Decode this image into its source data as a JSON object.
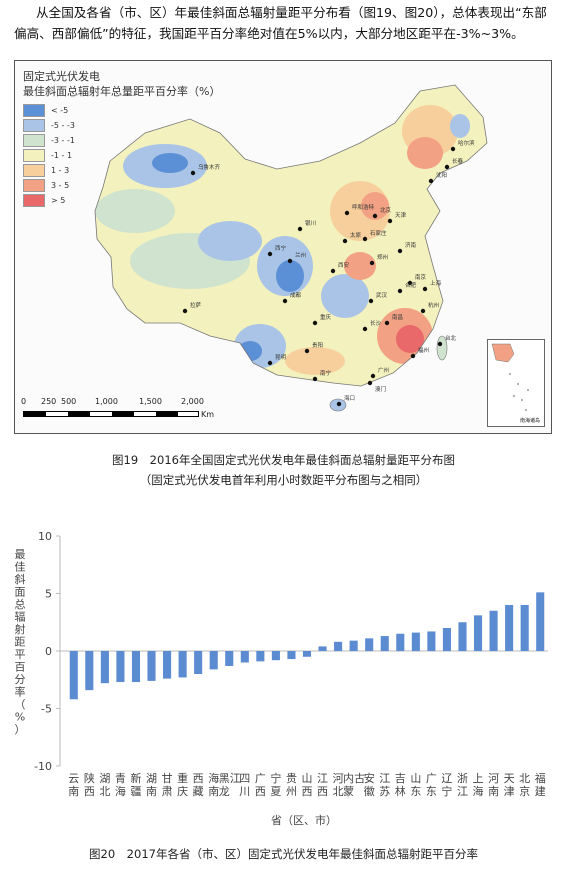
{
  "intro": {
    "text": "从全国及各省（市、区）年最佳斜面总辐射量距平分布看（图19、图20），总体表现出“东部偏高、西部偏低”的特征，我国距平百分率绝对值在5%以内，大部分地区距平在-3%~3%。"
  },
  "map": {
    "legend_title_1": "固定式光伏发电",
    "legend_title_2": "最佳斜面总辐射年总量距平百分率（%）",
    "legend_items": [
      {
        "label": "< -5",
        "color": "#5b8fd6"
      },
      {
        "label": "-5 - -3",
        "color": "#a9c4e6"
      },
      {
        "label": "-3 - -1",
        "color": "#cfe3cf"
      },
      {
        "label": "-1 - 1",
        "color": "#f3f1bd"
      },
      {
        "label": "1 - 3",
        "color": "#f7cf9c"
      },
      {
        "label": "3 - 5",
        "color": "#f3a184"
      },
      {
        "label": "> 5",
        "color": "#e9686a"
      }
    ],
    "scale_ticks": [
      "0",
      "250",
      "500",
      "1,000",
      "1,500",
      "2,000"
    ],
    "scale_unit": "Km",
    "inset_label": "南海诸岛",
    "cities": [
      "乌鲁木齐",
      "哈尔滨",
      "长春",
      "沈阳",
      "呼和浩特",
      "北京",
      "天津",
      "石家庄",
      "太原",
      "银川",
      "西宁",
      "兰州",
      "济南",
      "郑州",
      "西安",
      "拉萨",
      "成都",
      "重庆",
      "武汉",
      "合肥",
      "南京",
      "上海",
      "杭州",
      "长沙",
      "南昌",
      "福州",
      "台北",
      "贵阳",
      "昆明",
      "南宁",
      "广州",
      "澳门",
      "海口"
    ]
  },
  "caption1_line1": "图19　2016年全国固定式光伏发电年最佳斜面总辐射量距平分布图",
  "caption1_line2": "（固定式光伏发电首年利用小时数距平分布图与之相同）",
  "chart_data": {
    "type": "bar",
    "ylabel": "最佳斜面总辐射距平百分率（%）",
    "xlabel": "省（区、市）",
    "ylim": [
      -10,
      10
    ],
    "yticks": [
      10,
      5,
      0,
      -5,
      -10
    ],
    "bar_color": "#5b8bd1",
    "categories": [
      "云南",
      "陕西",
      "湖北",
      "青海",
      "新疆",
      "湖南",
      "甘肃",
      "重庆",
      "西藏",
      "海南",
      "黑龙江",
      "四川",
      "广西",
      "宁夏",
      "贵州",
      "山西",
      "江西",
      "河北",
      "内蒙古",
      "安徽",
      "江苏",
      "吉林",
      "山东",
      "广东",
      "辽宁",
      "浙江",
      "上海",
      "河南",
      "天津",
      "北京",
      "福建"
    ],
    "values": [
      -4.2,
      -3.4,
      -2.8,
      -2.7,
      -2.7,
      -2.6,
      -2.4,
      -2.3,
      -2.0,
      -1.6,
      -1.3,
      -1.0,
      -0.9,
      -0.8,
      -0.7,
      -0.5,
      0.4,
      0.8,
      0.9,
      1.1,
      1.3,
      1.5,
      1.6,
      1.7,
      2.0,
      2.5,
      3.1,
      3.5,
      4.0,
      4.0,
      5.1
    ]
  },
  "caption2": "图20　2017年各省（市、区）固定式光伏发电年最佳斜面总辐射距平百分率"
}
